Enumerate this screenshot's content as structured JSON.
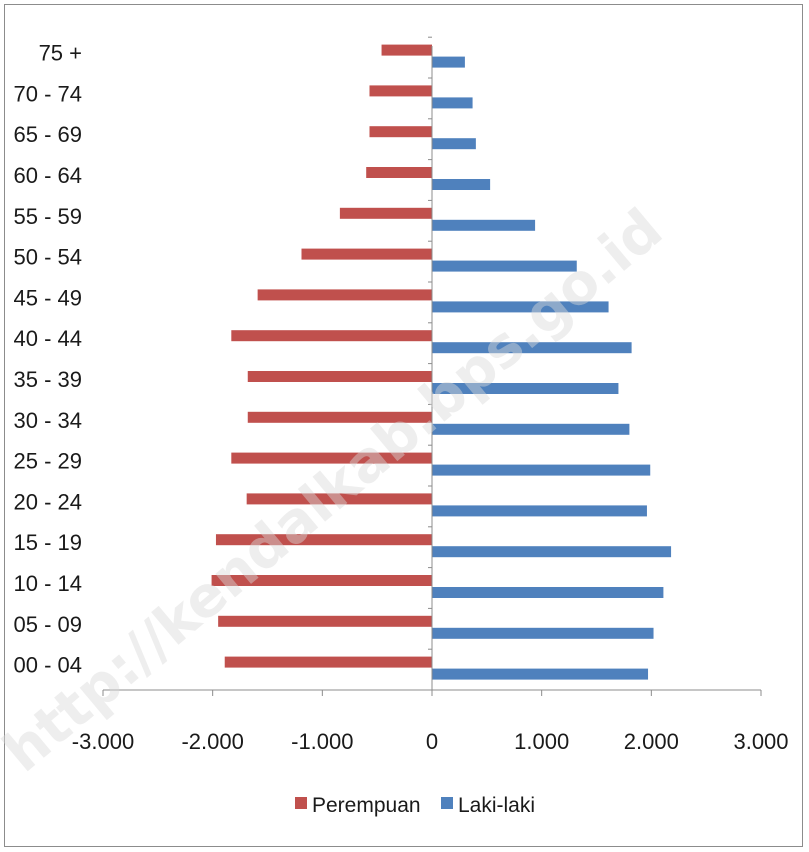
{
  "chart_data": {
    "type": "bar",
    "orientation": "horizontal",
    "categories": [
      "00 - 04",
      "05 - 09",
      "10 - 14",
      "15 - 19",
      "20 - 24",
      "25 - 29",
      "30 - 34",
      "35 - 39",
      "40 - 44",
      "45 - 49",
      "50 - 54",
      "55 - 59",
      "60 - 64",
      "65 - 69",
      "70 - 74",
      "75 +"
    ],
    "series": [
      {
        "name": "Perempuan",
        "color": "#c0504d",
        "values": [
          -1890,
          -1950,
          -2010,
          -1970,
          -1690,
          -1830,
          -1680,
          -1680,
          -1830,
          -1590,
          -1190,
          -840,
          -600,
          -570,
          -570,
          -460
        ]
      },
      {
        "name": "Laki-laki",
        "color": "#4f81bd",
        "values": [
          1970,
          2020,
          2110,
          2180,
          1960,
          1990,
          1800,
          1700,
          1820,
          1610,
          1320,
          940,
          530,
          400,
          370,
          300
        ]
      }
    ],
    "x_ticks": [
      "-3.000",
      "-2.000",
      "-1.000",
      "0",
      "1.000",
      "2.000",
      "3.000"
    ],
    "xlim": [
      -3000,
      3000
    ],
    "legend_position": "bottom",
    "grid": false
  },
  "watermark": "http://kendalkab.bps.go.id"
}
